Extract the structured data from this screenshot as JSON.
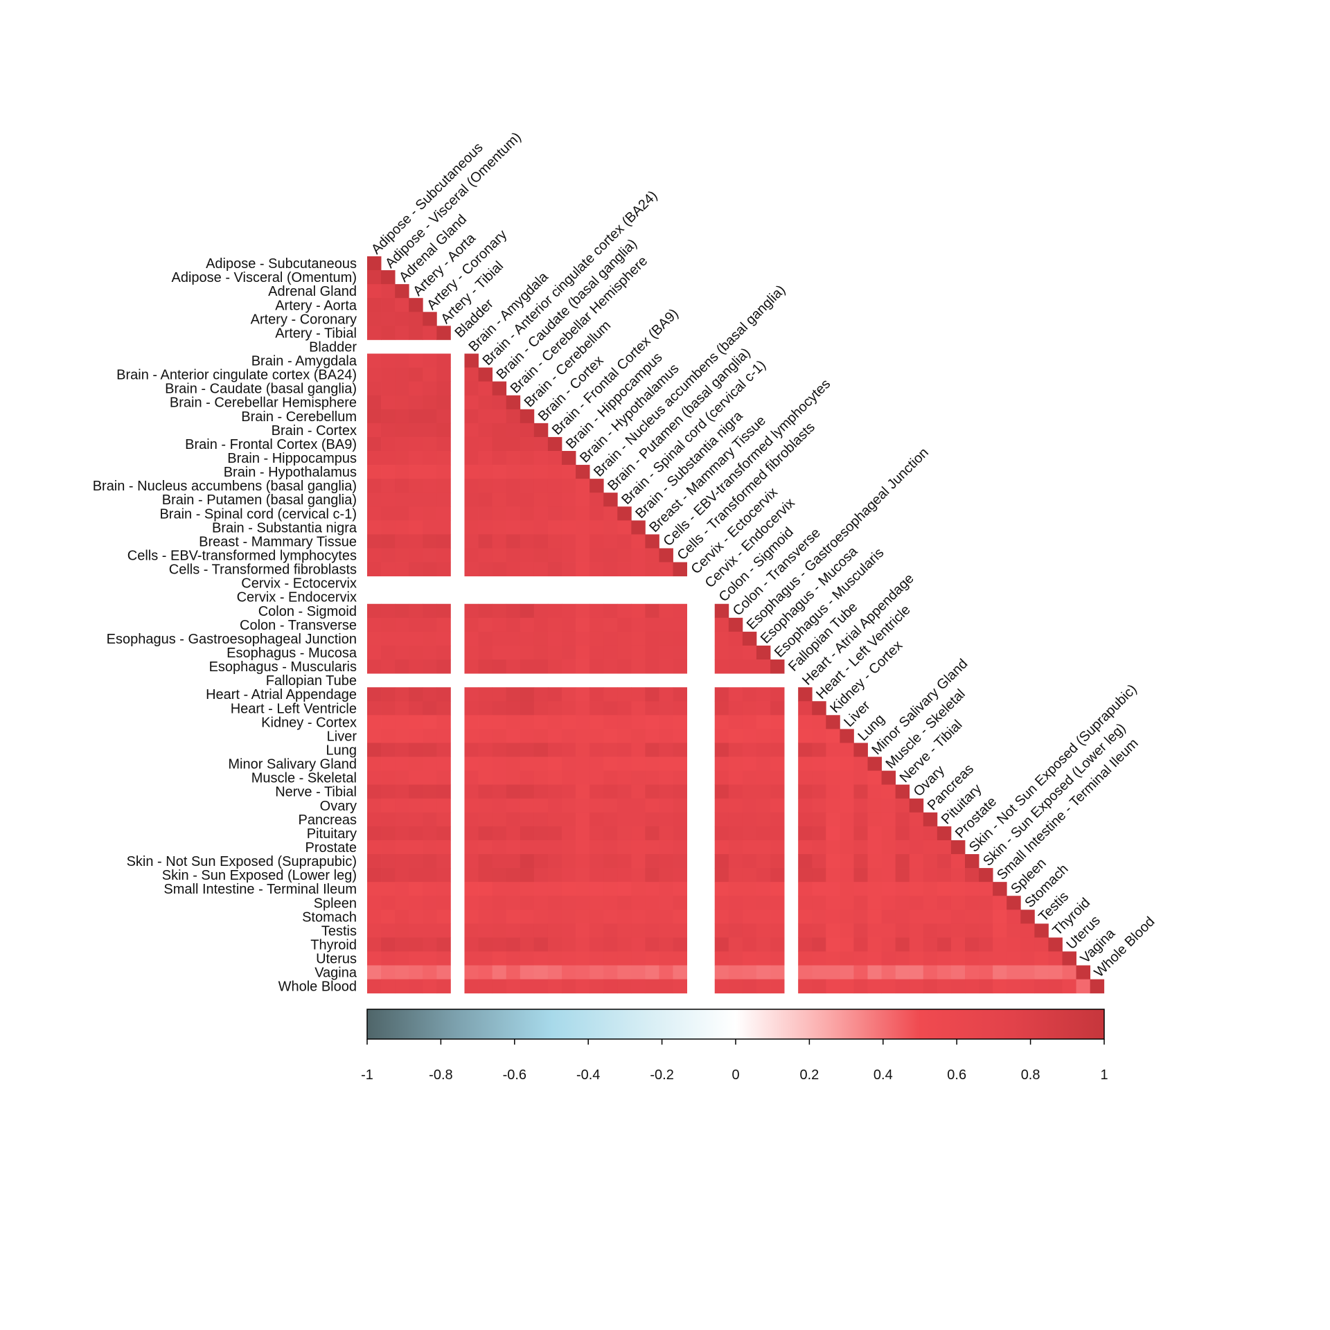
{
  "chart_data": {
    "type": "heatmap",
    "title": "",
    "xlabel": "",
    "ylabel": "",
    "layout": "lower-triangle",
    "labels": [
      "Adipose - Subcutaneous",
      "Adipose - Visceral (Omentum)",
      "Adrenal Gland",
      "Artery - Aorta",
      "Artery - Coronary",
      "Artery - Tibial",
      "Bladder",
      "Brain - Amygdala",
      "Brain - Anterior cingulate cortex (BA24)",
      "Brain - Caudate (basal ganglia)",
      "Brain - Cerebellar Hemisphere",
      "Brain - Cerebellum",
      "Brain - Cortex",
      "Brain - Frontal Cortex (BA9)",
      "Brain - Hippocampus",
      "Brain - Hypothalamus",
      "Brain - Nucleus accumbens (basal ganglia)",
      "Brain - Putamen (basal ganglia)",
      "Brain - Spinal cord (cervical c-1)",
      "Brain - Substantia nigra",
      "Breast - Mammary Tissue",
      "Cells - EBV-transformed lymphocytes",
      "Cells - Transformed fibroblasts",
      "Cervix - Ectocervix",
      "Cervix - Endocervix",
      "Colon - Sigmoid",
      "Colon - Transverse",
      "Esophagus - Gastroesophageal Junction",
      "Esophagus - Mucosa",
      "Esophagus - Muscularis",
      "Fallopian Tube",
      "Heart - Atrial Appendage",
      "Heart - Left Ventricle",
      "Kidney - Cortex",
      "Liver",
      "Lung",
      "Minor Salivary Gland",
      "Muscle - Skeletal",
      "Nerve - Tibial",
      "Ovary",
      "Pancreas",
      "Pituitary",
      "Prostate",
      "Skin - Not Sun Exposed (Suprapubic)",
      "Skin - Sun Exposed (Lower leg)",
      "Small Intestine - Terminal Ileum",
      "Spleen",
      "Stomach",
      "Testis",
      "Thyroid",
      "Uterus",
      "Vagina",
      "Whole Blood"
    ],
    "diagonal": 1,
    "missing": [
      "Bladder",
      "Cervix - Ectocervix",
      "Cervix - Endocervix",
      "Fallopian Tube"
    ],
    "group_base": {
      "Adipose - Subcutaneous": 0.8,
      "Adipose - Visceral (Omentum)": 0.79,
      "Adrenal Gland": 0.72,
      "Artery - Aorta": 0.76,
      "Artery - Coronary": 0.76,
      "Artery - Tibial": 0.74,
      "Brain - Amygdala": 0.7,
      "Brain - Anterior cingulate cortex (BA24)": 0.72,
      "Brain - Caudate (basal ganglia)": 0.72,
      "Brain - Cerebellar Hemisphere": 0.74,
      "Brain - Cerebellum": 0.76,
      "Brain - Cortex": 0.73,
      "Brain - Frontal Cortex (BA9)": 0.72,
      "Brain - Hippocampus": 0.66,
      "Brain - Hypothalamus": 0.56,
      "Brain - Nucleus accumbens (basal ganglia)": 0.68,
      "Brain - Putamen (basal ganglia)": 0.68,
      "Brain - Spinal cord (cervical c-1)": 0.66,
      "Brain - Substantia nigra": 0.6,
      "Breast - Mammary Tissue": 0.74,
      "Cells - EBV-transformed lymphocytes": 0.68,
      "Cells - Transformed fibroblasts": 0.7,
      "Colon - Sigmoid": 0.76,
      "Colon - Transverse": 0.66,
      "Esophagus - Gastroesophageal Junction": 0.66,
      "Esophagus - Mucosa": 0.66,
      "Esophagus - Muscularis": 0.72,
      "Heart - Atrial Appendage": 0.76,
      "Heart - Left Ventricle": 0.74,
      "Kidney - Cortex": 0.5,
      "Liver": 0.52,
      "Lung": 0.8,
      "Minor Salivary Gland": 0.52,
      "Muscle - Skeletal": 0.56,
      "Nerve - Tibial": 0.76,
      "Ovary": 0.6,
      "Pancreas": 0.68,
      "Pituitary": 0.72,
      "Prostate": 0.6,
      "Skin - Not Sun Exposed (Suprapubic)": 0.76,
      "Skin - Sun Exposed (Lower leg)": 0.76,
      "Small Intestine - Terminal Ileum": 0.5,
      "Spleen": 0.58,
      "Stomach": 0.56,
      "Testis": 0.64,
      "Thyroid": 0.74,
      "Uterus": 0.56,
      "Vagina": 0.36,
      "Whole Blood": 0.62
    },
    "colorbar": {
      "min": -1,
      "max": 1,
      "ticks": [
        "-1",
        "-0.8",
        "-0.6",
        "-0.4",
        "-0.2",
        "0",
        "0.2",
        "0.4",
        "0.6",
        "0.8",
        "1"
      ],
      "colors": [
        {
          "value": -1,
          "color": "#4f6569"
        },
        {
          "value": -0.75,
          "color": "#7ea3b0"
        },
        {
          "value": -0.5,
          "color": "#a7d9ea"
        },
        {
          "value": -0.25,
          "color": "#d5edf4"
        },
        {
          "value": 0,
          "color": "#ffffff"
        },
        {
          "value": 0.25,
          "color": "#fbaaaa"
        },
        {
          "value": 0.5,
          "color": "#f04a50"
        },
        {
          "value": 0.75,
          "color": "#e2424a"
        },
        {
          "value": 1,
          "color": "#c6363c"
        }
      ]
    }
  }
}
